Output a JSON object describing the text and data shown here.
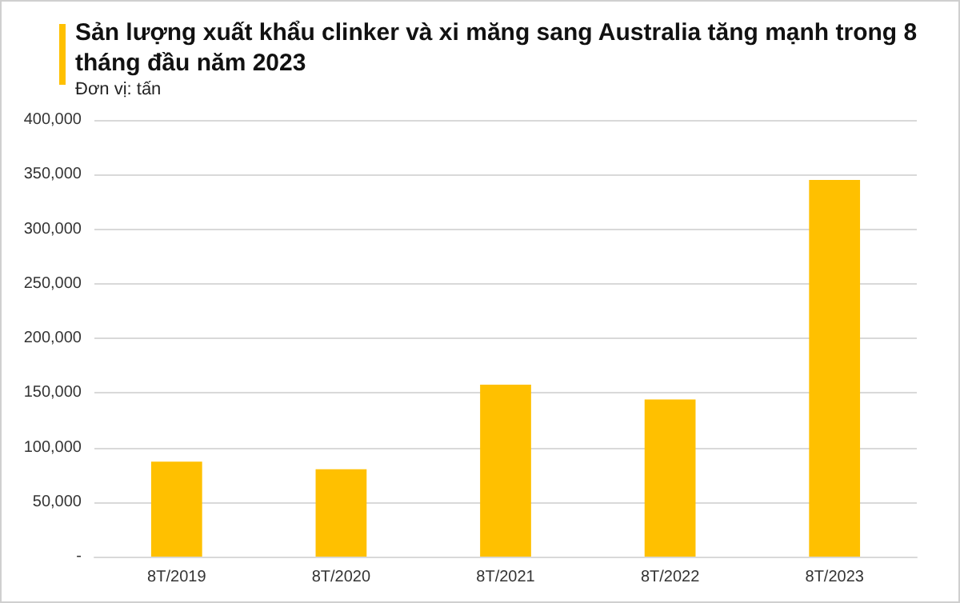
{
  "chart_data": {
    "type": "bar",
    "title": "Sản lượng xuất khẩu clinker và xi măng sang Australia tăng mạnh trong 8 tháng đầu năm 2023",
    "subtitle": "Đơn vị: tấn",
    "categories": [
      "8T/2019",
      "8T/2020",
      "8T/2021",
      "8T/2022",
      "8T/2023"
    ],
    "values": [
      87000,
      80000,
      157500,
      144000,
      345000
    ],
    "color": "#ffc000",
    "ylim": [
      0,
      400000
    ],
    "yticks": [
      {
        "value": 0,
        "label": "-"
      },
      {
        "value": 50000,
        "label": "50,000"
      },
      {
        "value": 100000,
        "label": "100,000"
      },
      {
        "value": 150000,
        "label": "150,000"
      },
      {
        "value": 200000,
        "label": "200,000"
      },
      {
        "value": 250000,
        "label": "250,000"
      },
      {
        "value": 300000,
        "label": "300,000"
      },
      {
        "value": 350000,
        "label": "350,000"
      },
      {
        "value": 400000,
        "label": "400,000"
      }
    ],
    "grid": "y"
  }
}
